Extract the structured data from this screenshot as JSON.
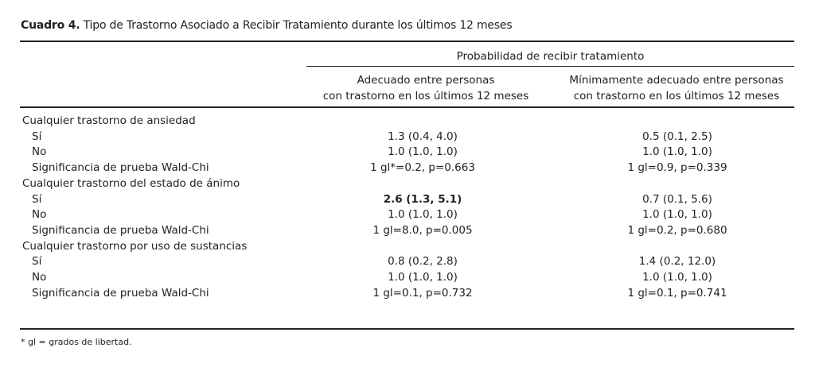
{
  "title": {
    "label": "Cuadro 4.",
    "text": "Tipo de Trastorno Asociado a Recibir Tratamiento durante los últimos 12 meses"
  },
  "header": {
    "group": "Probabilidad de recibir tratamiento",
    "col1": [
      "Adecuado entre personas",
      "con trastorno en los últimos 12 meses"
    ],
    "col2": [
      "Mínimamente adecuado entre personas",
      "con trastorno en los últimos 12 meses"
    ]
  },
  "rows": [
    {
      "label": "Cualquier trastorno de ansiedad",
      "c1": "",
      "c2": "",
      "type": "group"
    },
    {
      "label": "Sí",
      "c1": "1.3 (0.4, 4.0)",
      "c2": "0.5 (0.1, 2.5)",
      "type": "sub"
    },
    {
      "label": "No",
      "c1": "1.0 (1.0, 1.0)",
      "c2": "1.0 (1.0, 1.0)",
      "type": "sub"
    },
    {
      "label": "Significancia de prueba Wald-Chi",
      "c1": "1 gl*=0.2, p=0.663",
      "c2": "1 gl=0.9, p=0.339",
      "type": "sub"
    },
    {
      "label": "Cualquier trastorno del estado de ánimo",
      "c1": "",
      "c2": "",
      "type": "group"
    },
    {
      "label": "Sí",
      "c1": "2.6 (1.3, 5.1)",
      "c2": "0.7 (0.1, 5.6)",
      "type": "sub",
      "bold_c1": true
    },
    {
      "label": "No",
      "c1": "1.0 (1.0, 1.0)",
      "c2": "1.0 (1.0, 1.0)",
      "type": "sub"
    },
    {
      "label": "Significancia de prueba Wald-Chi",
      "c1": "1 gl=8.0, p=0.005",
      "c2": "1 gl=0.2, p=0.680",
      "type": "sub"
    },
    {
      "label": "Cualquier trastorno por uso de sustancias",
      "c1": "",
      "c2": "",
      "type": "group"
    },
    {
      "label": "Sí",
      "c1": "0.8 (0.2, 2.8)",
      "c2": "1.4 (0.2, 12.0)",
      "type": "sub"
    },
    {
      "label": "No",
      "c1": "1.0 (1.0, 1.0)",
      "c2": "1.0 (1.0, 1.0)",
      "type": "sub"
    },
    {
      "label": "Significancia de prueba Wald-Chi",
      "c1": "1 gl=0.1, p=0.732",
      "c2": "1 gl=0.1, p=0.741",
      "type": "sub"
    }
  ],
  "footnote": "* gl = grados de libertad."
}
